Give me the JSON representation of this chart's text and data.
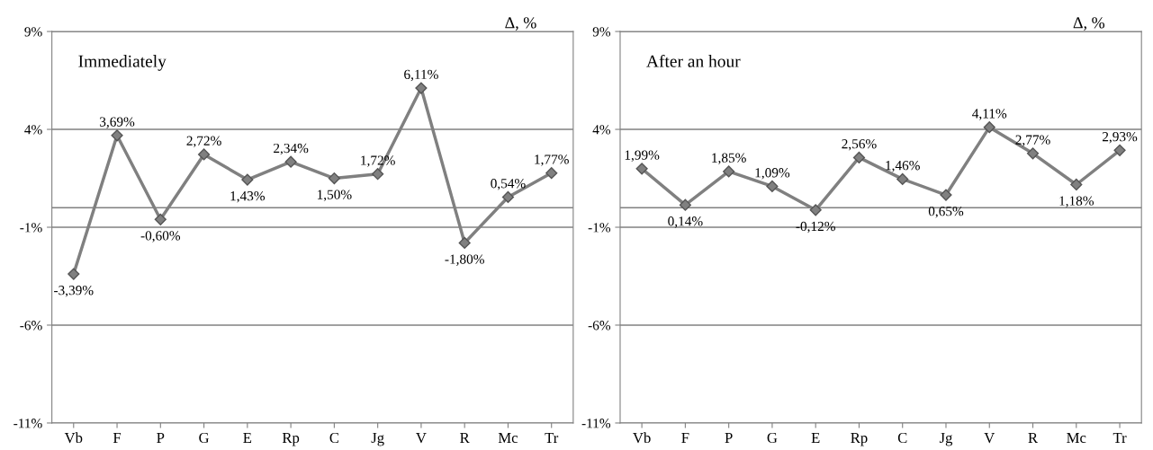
{
  "chart_data": [
    {
      "type": "line",
      "title": "Immediately",
      "annotations": [
        "Δ, %"
      ],
      "categories": [
        "Vb",
        "F",
        "P",
        "G",
        "E",
        "Rp",
        "C",
        "Jg",
        "V",
        "R",
        "Mc",
        "Tr"
      ],
      "series": [
        {
          "color": "#808080",
          "values": [
            -3.39,
            3.69,
            -0.6,
            2.72,
            1.43,
            2.34,
            1.5,
            1.72,
            6.11,
            -1.8,
            0.54,
            1.77
          ],
          "value_labels": [
            "-3,39%",
            "3,69%",
            "-0,60%",
            "2,72%",
            "1,43%",
            "2,34%",
            "1,50%",
            "1,72%",
            "6,11%",
            "-1,80%",
            "0,54%",
            "1,77%"
          ]
        }
      ],
      "ylim": [
        -11,
        9
      ],
      "yticks": [
        {
          "value": -11,
          "label": "-11%"
        },
        {
          "value": -6,
          "label": "-6%"
        },
        {
          "value": -1,
          "label": "-1%"
        },
        {
          "value": 4,
          "label": "4%"
        },
        {
          "value": 9,
          "label": "9%"
        }
      ],
      "grid": "y",
      "marker": "diamond",
      "line_style": "solid",
      "ref_lines": [
        {
          "axis": "y",
          "value": 0,
          "color": "#808080"
        }
      ]
    },
    {
      "type": "line",
      "title": "After an hour",
      "annotations": [
        "Δ, %"
      ],
      "categories": [
        "Vb",
        "F",
        "P",
        "G",
        "E",
        "Rp",
        "C",
        "Jg",
        "V",
        "R",
        "Mc",
        "Tr"
      ],
      "series": [
        {
          "color": "#808080",
          "values": [
            1.99,
            0.14,
            1.85,
            1.09,
            -0.12,
            2.56,
            1.46,
            0.65,
            4.11,
            2.77,
            1.18,
            2.93
          ],
          "value_labels": [
            "1,99%",
            "0,14%",
            "1,85%",
            "1,09%",
            "-0,12%",
            "2,56%",
            "1,46%",
            "0,65%",
            "4,11%",
            "2,77%",
            "1,18%",
            "2,93%"
          ]
        }
      ],
      "ylim": [
        -11,
        9
      ],
      "yticks": [
        {
          "value": -11,
          "label": "-11%"
        },
        {
          "value": -6,
          "label": "-6%"
        },
        {
          "value": -1,
          "label": "-1%"
        },
        {
          "value": 4,
          "label": "4%"
        },
        {
          "value": 9,
          "label": "9%"
        }
      ],
      "grid": "y",
      "marker": "diamond",
      "line_style": "solid",
      "ref_lines": [
        {
          "axis": "y",
          "value": 0,
          "color": "#808080"
        }
      ]
    }
  ]
}
